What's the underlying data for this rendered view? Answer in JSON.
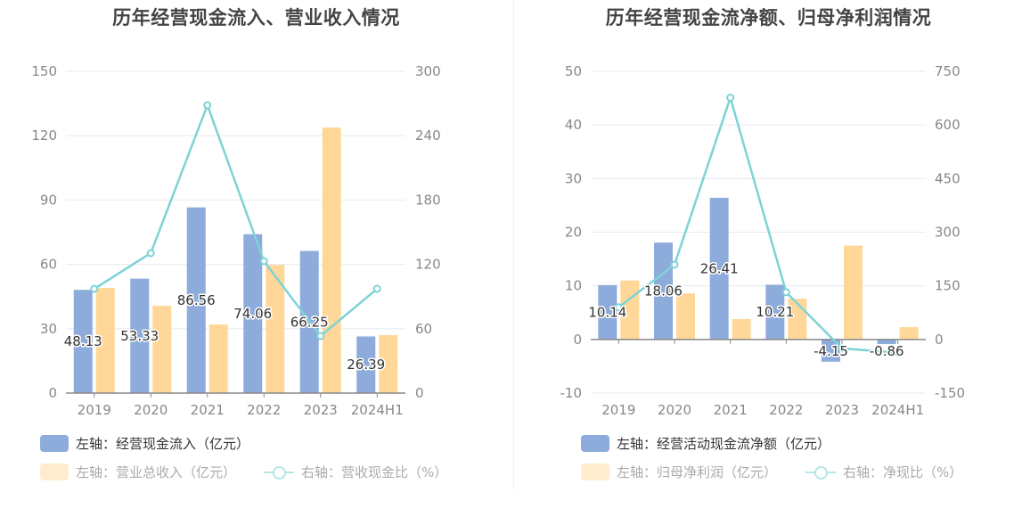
{
  "colors": {
    "bar1": "#8eacdb",
    "bar2": "#ffd899",
    "line": "#7dd3d6",
    "grid": "#e6eaf5",
    "axis": "#888888"
  },
  "chart_data": [
    {
      "type": "bar",
      "title": "历年经营现金流入、营业收入情况",
      "categories": [
        "2019",
        "2020",
        "2021",
        "2022",
        "2023",
        "2024H1"
      ],
      "left_axis": {
        "ticks": [
          "0",
          "30",
          "60",
          "90",
          "120",
          "150"
        ],
        "ylim": [
          0,
          150
        ]
      },
      "right_axis": {
        "ticks": [
          "0",
          "60",
          "120",
          "180",
          "240",
          "300"
        ],
        "ylim": [
          0,
          300
        ]
      },
      "series": [
        {
          "name": "左轴：经营现金流入（亿元）",
          "type": "bar",
          "axis": "left",
          "values": [
            48.13,
            53.33,
            86.56,
            74.06,
            66.25,
            26.39
          ],
          "labels": [
            "48.13",
            "53.33",
            "86.56",
            "74.06",
            "66.25",
            "26.39"
          ],
          "active": true
        },
        {
          "name": "左轴：营业总收入（亿元）",
          "type": "bar",
          "axis": "left",
          "values": [
            49.0,
            40.7,
            32.0,
            59.8,
            123.8,
            27.0
          ],
          "active": false
        },
        {
          "name": "右轴：营收现金比（%）",
          "type": "line",
          "axis": "right",
          "values": [
            97.2,
            130.5,
            268.4,
            123.0,
            53.2,
            97.2
          ],
          "active": false
        }
      ],
      "grid": true,
      "legend_position": "bottom-left"
    },
    {
      "type": "bar",
      "title": "历年经营现金流净额、归母净利润情况",
      "categories": [
        "2019",
        "2020",
        "2021",
        "2022",
        "2023",
        "2024H1"
      ],
      "left_axis": {
        "ticks": [
          "-10",
          "0",
          "10",
          "20",
          "30",
          "40",
          "50"
        ],
        "ylim": [
          -10,
          50
        ]
      },
      "right_axis": {
        "ticks": [
          "-150",
          "0",
          "150",
          "300",
          "450",
          "600",
          "750"
        ],
        "ylim": [
          -150,
          750
        ]
      },
      "series": [
        {
          "name": "左轴：经营活动现金流净额（亿元）",
          "type": "bar",
          "axis": "left",
          "values": [
            10.14,
            18.06,
            26.41,
            10.21,
            -4.15,
            -0.86
          ],
          "labels": [
            "10.14",
            "18.06",
            "26.41",
            "10.21",
            "-4.15",
            "-0.86"
          ],
          "active": true
        },
        {
          "name": "左轴：归母净利润（亿元）",
          "type": "bar",
          "axis": "left",
          "values": [
            11.0,
            8.6,
            3.8,
            7.6,
            17.5,
            2.3
          ],
          "active": false
        },
        {
          "name": "右轴：净现比（%）",
          "type": "line",
          "axis": "right",
          "values": [
            90,
            209,
            676,
            132,
            -25,
            -37
          ],
          "active": false
        }
      ],
      "grid": true,
      "legend_position": "bottom-left"
    }
  ]
}
